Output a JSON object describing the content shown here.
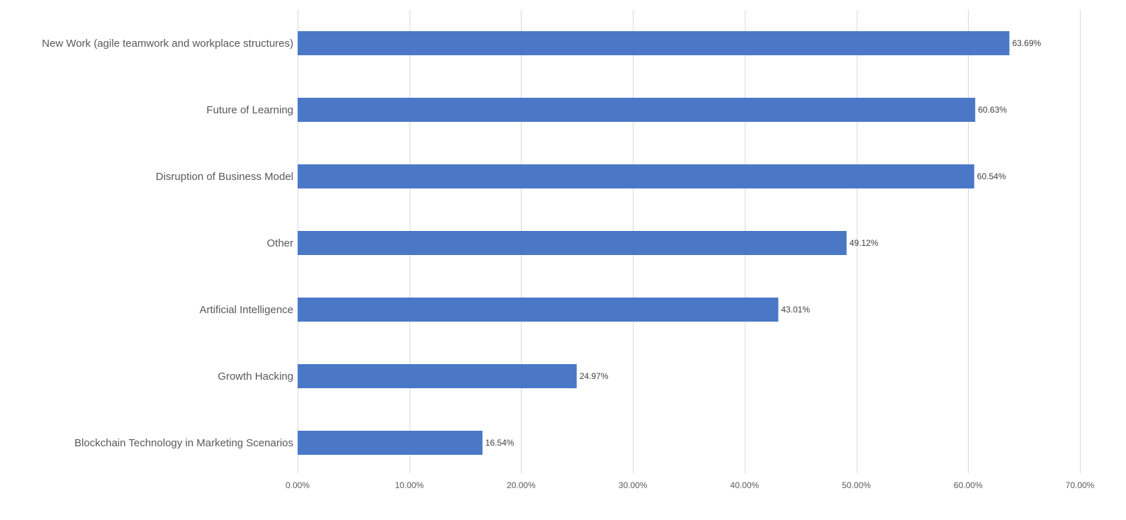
{
  "chart_data": {
    "type": "bar",
    "orientation": "horizontal",
    "categories": [
      "New Work (agile teamwork and workplace structures)",
      "Future of Learning",
      "Disruption of Business Model",
      "Other",
      "Artificial Intelligence",
      "Growth Hacking",
      "Blockchain Technology in Marketing Scenarios"
    ],
    "values": [
      63.69,
      60.63,
      60.54,
      49.12,
      43.01,
      24.97,
      16.54
    ],
    "data_labels": [
      "63.69%",
      "60.63%",
      "60.54%",
      "49.12%",
      "43.01%",
      "24.97%",
      "16.54%"
    ],
    "xlim": [
      0,
      70
    ],
    "x_ticks": [
      0,
      10,
      20,
      30,
      40,
      50,
      60,
      70
    ],
    "x_tick_labels": [
      "0.00%",
      "10.00%",
      "20.00%",
      "30.00%",
      "40.00%",
      "50.00%",
      "60.00%",
      "70.00%"
    ],
    "bar_color": "#4a78c7",
    "gridlines": "vertical",
    "legend": "none",
    "title": "",
    "xlabel": "",
    "ylabel": ""
  }
}
